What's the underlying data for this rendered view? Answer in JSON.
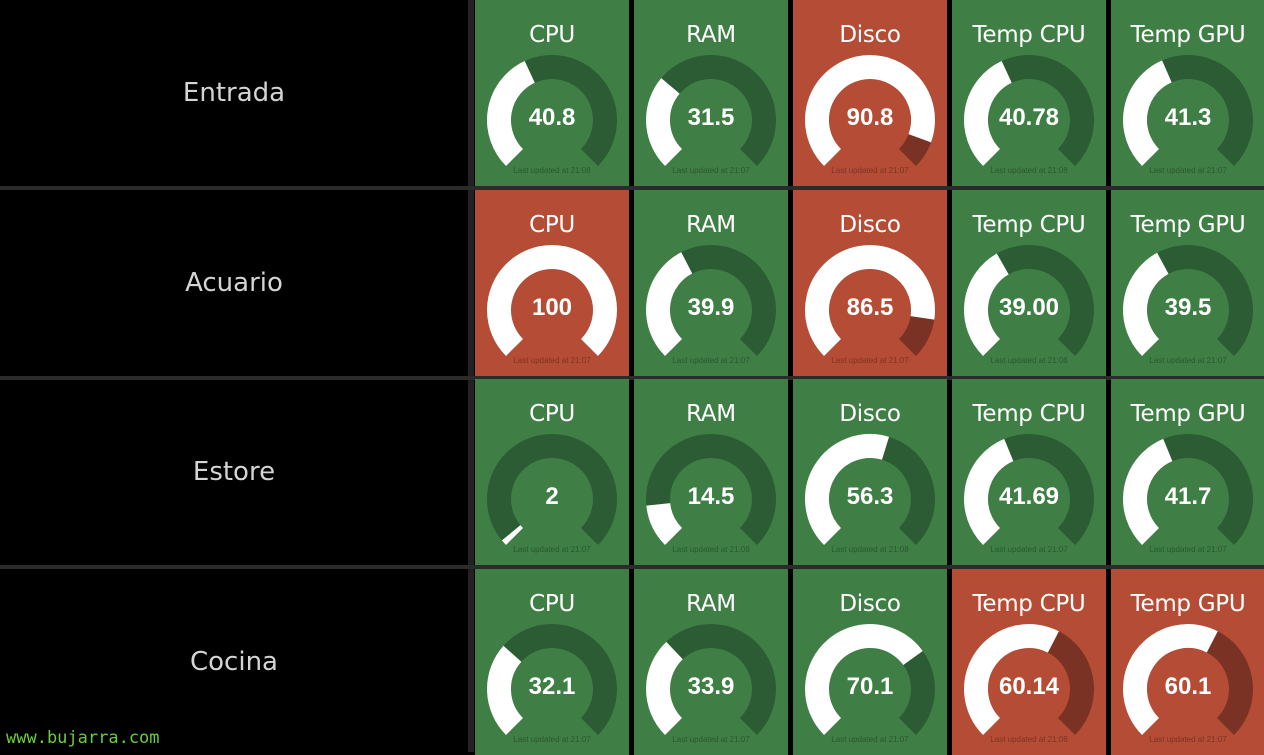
{
  "colors": {
    "ok": "#3f7f46",
    "warn": "#b54c35",
    "ok_track": "#2b5c33",
    "warn_track": "#7a3224",
    "fill": "#ffffff"
  },
  "rows": [
    {
      "name": "Entrada",
      "tiles": [
        {
          "title": "CPU",
          "value": "40.8",
          "percent": 40.8,
          "status": "ok",
          "updated": "Last updated at 21:08"
        },
        {
          "title": "RAM",
          "value": "31.5",
          "percent": 31.5,
          "status": "ok",
          "updated": "Last updated at 21:07"
        },
        {
          "title": "Disco",
          "value": "90.8",
          "percent": 90.8,
          "status": "warn",
          "updated": "Last updated at 21:07"
        },
        {
          "title": "Temp CPU",
          "value": "40.78",
          "percent": 40.78,
          "status": "ok",
          "updated": "Last updated at 21:08"
        },
        {
          "title": "Temp GPU",
          "value": "41.3",
          "percent": 41.3,
          "status": "ok",
          "updated": "Last updated at 21:07"
        }
      ]
    },
    {
      "name": "Acuario",
      "tiles": [
        {
          "title": "CPU",
          "value": "100",
          "percent": 100,
          "status": "warn",
          "updated": "Last updated at 21:07"
        },
        {
          "title": "RAM",
          "value": "39.9",
          "percent": 39.9,
          "status": "ok",
          "updated": "Last updated at 21:07"
        },
        {
          "title": "Disco",
          "value": "86.5",
          "percent": 86.5,
          "status": "warn",
          "updated": "Last updated at 21:07"
        },
        {
          "title": "Temp CPU",
          "value": "39.00",
          "percent": 39.0,
          "status": "ok",
          "updated": "Last updated at 21:08"
        },
        {
          "title": "Temp GPU",
          "value": "39.5",
          "percent": 39.5,
          "status": "ok",
          "updated": "Last updated at 21:07"
        }
      ]
    },
    {
      "name": "Estore",
      "tiles": [
        {
          "title": "CPU",
          "value": "2",
          "percent": 2,
          "status": "ok",
          "updated": "Last updated at 21:07"
        },
        {
          "title": "RAM",
          "value": "14.5",
          "percent": 14.5,
          "status": "ok",
          "updated": "Last updated at 21:08"
        },
        {
          "title": "Disco",
          "value": "56.3",
          "percent": 56.3,
          "status": "ok",
          "updated": "Last updated at 21:08"
        },
        {
          "title": "Temp CPU",
          "value": "41.69",
          "percent": 41.69,
          "status": "ok",
          "updated": "Last updated at 21:07"
        },
        {
          "title": "Temp GPU",
          "value": "41.7",
          "percent": 41.7,
          "status": "ok",
          "updated": "Last updated at 21:07"
        }
      ]
    },
    {
      "name": "Cocina",
      "tiles": [
        {
          "title": "CPU",
          "value": "32.1",
          "percent": 32.1,
          "status": "ok",
          "updated": "Last updated at 21:07"
        },
        {
          "title": "RAM",
          "value": "33.9",
          "percent": 33.9,
          "status": "ok",
          "updated": "Last updated at 21:07"
        },
        {
          "title": "Disco",
          "value": "70.1",
          "percent": 70.1,
          "status": "ok",
          "updated": "Last updated at 21:07"
        },
        {
          "title": "Temp CPU",
          "value": "60.14",
          "percent": 60.14,
          "status": "warn",
          "updated": "Last updated at 21:08"
        },
        {
          "title": "Temp GPU",
          "value": "60.1",
          "percent": 60.1,
          "status": "warn",
          "updated": "Last updated at 21:07"
        }
      ]
    }
  ],
  "watermark": "www.bujarra.com"
}
